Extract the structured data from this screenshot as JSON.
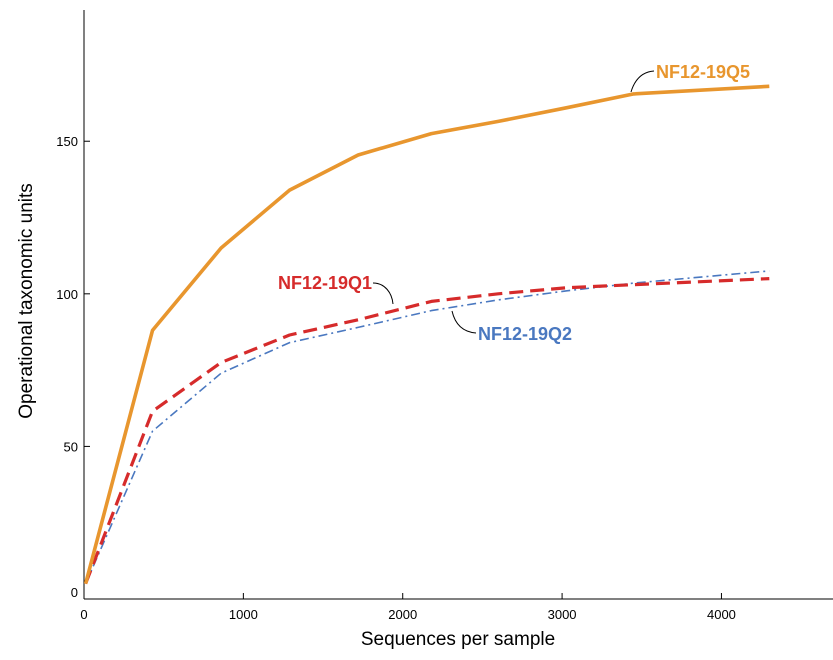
{
  "chart_data": {
    "type": "line",
    "xlabel": "Sequences per sample",
    "ylabel": "Operational taxonomic units",
    "xlim": [
      0,
      4700
    ],
    "ylim": [
      0,
      193
    ],
    "x_ticks": [
      0,
      1000,
      2000,
      3000,
      4000
    ],
    "y_ticks": [
      0,
      50,
      100,
      150
    ],
    "grid": false,
    "legend": "none",
    "series": [
      {
        "name": "NF12-19Q5",
        "color": "#e8962e",
        "style": "solid",
        "x": [
          10,
          430,
          860,
          1290,
          1720,
          2180,
          2600,
          3030,
          3450,
          4300
        ],
        "y": [
          5,
          88,
          115,
          134,
          145.5,
          152.5,
          156.5,
          161,
          165.5,
          168
        ]
      },
      {
        "name": "NF12-19Q1",
        "color": "#d62b2b",
        "style": "dashed",
        "x": [
          10,
          430,
          860,
          1290,
          1720,
          2180,
          2600,
          3030,
          3450,
          4300
        ],
        "y": [
          5,
          61.5,
          77.5,
          86.5,
          91.5,
          97.5,
          100,
          102,
          103,
          105
        ]
      },
      {
        "name": "NF12-19Q2",
        "color": "#4a78c0",
        "style": "dashdot",
        "x": [
          10,
          430,
          860,
          1290,
          1720,
          2180,
          2600,
          3030,
          3450,
          4300
        ],
        "y": [
          5,
          55,
          74,
          84,
          89,
          94.5,
          98,
          101,
          103.5,
          107.5
        ]
      }
    ]
  }
}
